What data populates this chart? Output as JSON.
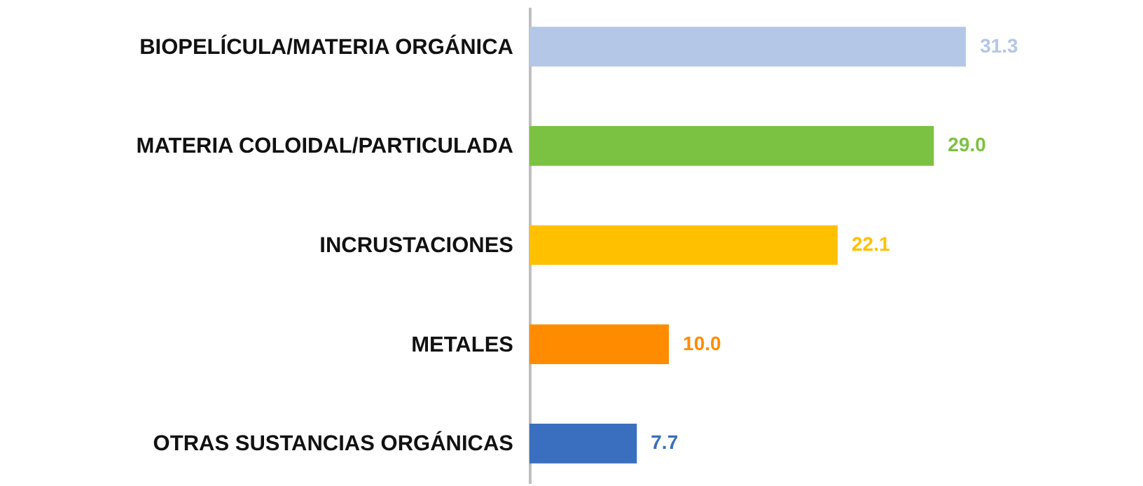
{
  "chart_data": {
    "type": "bar",
    "orientation": "horizontal",
    "categories": [
      "BIOPELÍCULA/MATERIA  ORGÁNICA",
      "MATERIA COLOIDAL/PARTICULADA",
      "INCRUSTACIONES",
      "METALES",
      "OTRAS SUSTANCIAS ORGÁNICAS"
    ],
    "values": [
      31.3,
      29.0,
      22.1,
      10.0,
      7.7
    ],
    "colors": [
      "#b4c7e7",
      "#7cc242",
      "#ffc000",
      "#ff8c00",
      "#3a6fc0"
    ],
    "value_labels": [
      "31.3",
      "29.0",
      "22.1",
      "10.0",
      "7.7"
    ],
    "xlim": [
      0,
      44
    ],
    "tick_labels": "y"
  }
}
